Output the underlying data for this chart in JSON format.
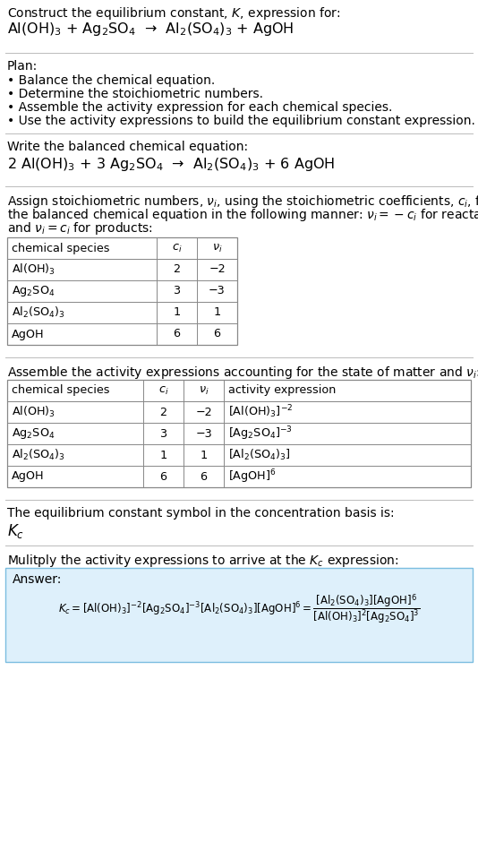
{
  "title_line1": "Construct the equilibrium constant, $K$, expression for:",
  "title_line2": "Al(OH)$_3$ + Ag$_2$SO$_4$  →  Al$_2$(SO$_4$)$_3$ + AgOH",
  "plan_header": "Plan:",
  "plan_bullets": [
    "• Balance the chemical equation.",
    "• Determine the stoichiometric numbers.",
    "• Assemble the activity expression for each chemical species.",
    "• Use the activity expressions to build the equilibrium constant expression."
  ],
  "balanced_header": "Write the balanced chemical equation:",
  "balanced_eq": "2 Al(OH)$_3$ + 3 Ag$_2$SO$_4$  →  Al$_2$(SO$_4$)$_3$ + 6 AgOH",
  "stoich_header_parts": [
    "Assign stoichiometric numbers, $\\nu_i$, using the stoichiometric coefficients, $c_i$, from",
    "the balanced chemical equation in the following manner: $\\nu_i = -c_i$ for reactants",
    "and $\\nu_i = c_i$ for products:"
  ],
  "table1_col0": "chemical species",
  "table1_col1": "$c_i$",
  "table1_col2": "$\\nu_i$",
  "table1_rows": [
    [
      "Al(OH)$_3$",
      "2",
      "−2"
    ],
    [
      "Ag$_2$SO$_4$",
      "3",
      "−3"
    ],
    [
      "Al$_2$(SO$_4$)$_3$",
      "1",
      "1"
    ],
    [
      "AgOH",
      "6",
      "6"
    ]
  ],
  "assemble_header": "Assemble the activity expressions accounting for the state of matter and $\\nu_i$:",
  "table2_col0": "chemical species",
  "table2_col1": "$c_i$",
  "table2_col2": "$\\nu_i$",
  "table2_col3": "activity expression",
  "table2_rows": [
    [
      "Al(OH)$_3$",
      "2",
      "−2",
      "[Al(OH)$_3$]$^{-2}$"
    ],
    [
      "Ag$_2$SO$_4$",
      "3",
      "−3",
      "[Ag$_2$SO$_4$]$^{-3}$"
    ],
    [
      "Al$_2$(SO$_4$)$_3$",
      "1",
      "1",
      "[Al$_2$(SO$_4$)$_3$]"
    ],
    [
      "AgOH",
      "6",
      "6",
      "[AgOH]$^6$"
    ]
  ],
  "kc_header": "The equilibrium constant symbol in the concentration basis is:",
  "kc_symbol": "$K_c$",
  "multiply_header": "Mulitply the activity expressions to arrive at the $K_c$ expression:",
  "answer_label": "Answer:",
  "answer_box_color": "#def0fb",
  "answer_box_border": "#7bbde0",
  "bg_color": "#ffffff",
  "sep_color": "#bbbbbb",
  "table_border_color": "#888888",
  "font_size": 10.0,
  "small_font": 9.2
}
